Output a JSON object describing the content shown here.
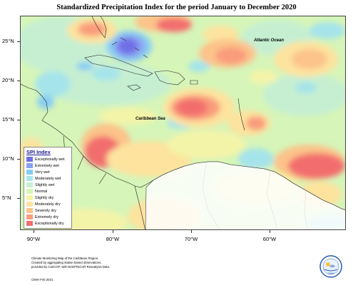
{
  "title": "Standardized Precipitation Index for the period January to December 2020",
  "map_labels": {
    "atlantic": "Atlantic Ocean",
    "caribbean": "Caribbean Sea"
  },
  "axes": {
    "latitude_labels": [
      "25°N",
      "20°N",
      "15°N",
      "10°N",
      "5°N"
    ],
    "longitude_labels": [
      "90°W",
      "80°W",
      "70°W",
      "60°W"
    ]
  },
  "legend": {
    "title": "SPI Index",
    "items": [
      {
        "label": "Exceptionally wet",
        "color": "#6f6ee6"
      },
      {
        "label": "Extremely wet",
        "color": "#8aa0f2"
      },
      {
        "label": "Very wet",
        "color": "#86cdf4"
      },
      {
        "label": "Moderately wet",
        "color": "#a8e6ec"
      },
      {
        "label": "Slightly wet",
        "color": "#c8f0d4"
      },
      {
        "label": "Normal",
        "color": "#d5f5b5"
      },
      {
        "label": "Slightly dry",
        "color": "#f4f4a8"
      },
      {
        "label": "Moderately dry",
        "color": "#fde39e"
      },
      {
        "label": "Severely dry",
        "color": "#fcc38a"
      },
      {
        "label": "Extremely dry",
        "color": "#f99c7c"
      },
      {
        "label": "Exceptionally dry",
        "color": "#f26e6e"
      }
    ]
  },
  "footer": {
    "lines": [
      "Climate Monitoring Map of the Caribbean Region.",
      "Created by aggregating station based observations,",
      "provided by CariCOF, with NCEP/NCAR Reanalysis Data."
    ],
    "credit": "CIMH Feb 2021"
  },
  "logo": {
    "text": "CIMH"
  }
}
